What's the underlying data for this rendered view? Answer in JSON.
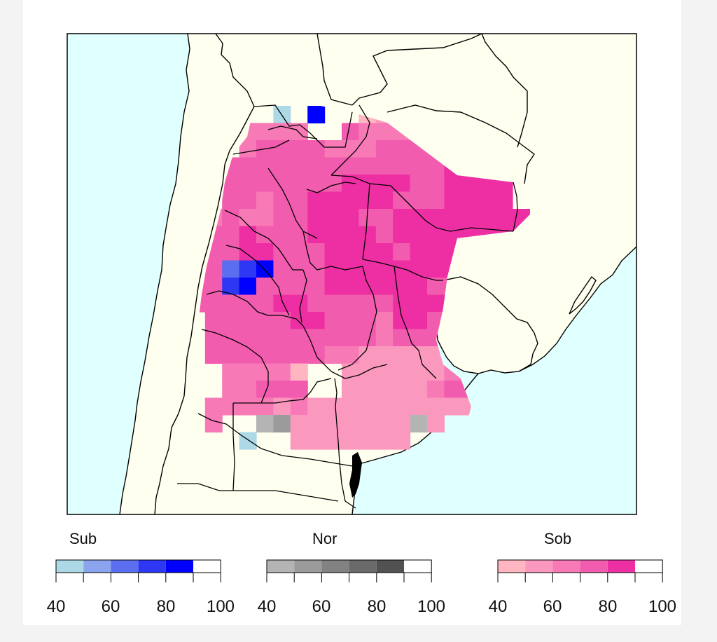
{
  "map": {
    "ocean_color": "#e0ffff",
    "land_color": "#fffff0",
    "border_color": "#000000"
  },
  "legends": [
    {
      "key": "sub",
      "title": "Sub",
      "colors": [
        "#add8e6",
        "#8ba4ee",
        "#5c6ef0",
        "#2e37f4",
        "#0000ff"
      ],
      "ticks": [
        "40",
        "60",
        "80",
        "100"
      ]
    },
    {
      "key": "nor",
      "title": "Nor",
      "colors": [
        "#b4b4b4",
        "#9b9b9b",
        "#828282",
        "#6a6a6a",
        "#515151"
      ],
      "ticks": [
        "40",
        "60",
        "80",
        "100"
      ]
    },
    {
      "key": "sob",
      "title": "Sob",
      "colors": [
        "#ffb6c1",
        "#fb98bd",
        "#f77ab6",
        "#f25cae",
        "#ee2fa4"
      ],
      "ticks": [
        "40",
        "60",
        "80",
        "100"
      ]
    }
  ]
}
